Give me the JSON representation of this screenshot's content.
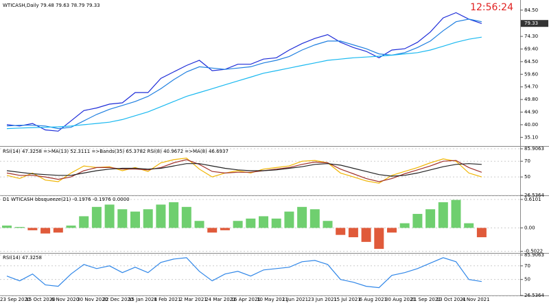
{
  "clock": "12:56:24",
  "chart_data": [
    {
      "type": "line",
      "title": "WTICASH,Daily 79.48 79.63 78.79 79.33",
      "last_price": 79.33,
      "categories": [
        "23 Sep 2020",
        null,
        "15 Oct 2020",
        null,
        "6 Nov 2020",
        null,
        "30 Nov 2020",
        null,
        "22 Dec 2020",
        null,
        "15 Jan 2021",
        null,
        "8 Feb 2021",
        null,
        "2 Mar 2021",
        null,
        "24 Mar 2021",
        null,
        "16 Apr 2021",
        null,
        "10 May 2021",
        null,
        "1 Jun 2021",
        null,
        "23 Jun 2021",
        null,
        "15 Jul 2021",
        null,
        "6 Aug 2021",
        null,
        "30 Aug 2021",
        null,
        "21 Sep 2021",
        null,
        "13 Oct 2021",
        null,
        "4 Nov 2021",
        null
      ],
      "series": [
        {
          "color": "#1c2bd8",
          "values": [
            40.0,
            39.5,
            40.5,
            38.0,
            37.5,
            41.5,
            45.5,
            46.5,
            48.0,
            48.5,
            52.5,
            52.5,
            58.0,
            60.5,
            63.0,
            65.0,
            61.0,
            61.5,
            63.5,
            63.5,
            65.5,
            66.0,
            69.0,
            71.5,
            73.5,
            75.0,
            72.0,
            70.0,
            68.5,
            66.0,
            69.0,
            69.5,
            72.0,
            76.0,
            81.5,
            83.5,
            81.0,
            79.3
          ]
        },
        {
          "color": "#1e7fe0",
          "values": [
            39.5,
            39.8,
            39.8,
            39.5,
            38.5,
            39.0,
            41.5,
            44.0,
            46.0,
            47.5,
            49.0,
            51.0,
            54.0,
            57.5,
            60.5,
            62.5,
            62.0,
            61.5,
            62.0,
            62.5,
            64.0,
            65.0,
            66.5,
            69.0,
            71.0,
            72.5,
            72.5,
            71.0,
            69.5,
            67.5,
            67.0,
            68.0,
            70.0,
            72.5,
            76.5,
            80.0,
            81.0,
            80.0
          ]
        },
        {
          "color": "#18b8f0",
          "values": [
            38.5,
            38.7,
            38.9,
            39.0,
            39.2,
            39.5,
            40.0,
            40.5,
            41.0,
            42.0,
            43.5,
            45.0,
            47.0,
            49.0,
            51.0,
            52.5,
            54.0,
            55.5,
            57.0,
            58.5,
            60.0,
            61.0,
            62.0,
            63.0,
            64.0,
            65.0,
            65.5,
            66.0,
            66.3,
            66.6,
            67.0,
            67.5,
            68.0,
            69.0,
            70.5,
            72.0,
            73.2,
            74.0
          ]
        }
      ],
      "ylim": [
        32.0,
        87.37
      ],
      "yticks": [
        {
          "value": 84.5,
          "label": "84.50"
        },
        {
          "value": 74.3,
          "label": "74.30"
        },
        {
          "value": 69.4,
          "label": "69.40"
        },
        {
          "value": 64.5,
          "label": "64.50"
        },
        {
          "value": 59.6,
          "label": "59.60"
        },
        {
          "value": 54.7,
          "label": "54.70"
        },
        {
          "value": 49.8,
          "label": "49.80"
        },
        {
          "value": 44.9,
          "label": "44.90"
        },
        {
          "value": 40,
          "label": "40.00"
        },
        {
          "value": 35.1,
          "label": "35.10"
        }
      ]
    },
    {
      "type": "line",
      "title": "RSI(14) 47.3258 =>MA(13) 52.3111 =>Bands(35) 65.3782 RSI(8) 40.9672 =>MA(8) 46.6937",
      "series": [
        {
          "color": "#f0b400",
          "values": [
            52,
            48,
            55,
            46,
            44,
            55,
            64,
            62,
            63,
            58,
            62,
            57,
            68,
            72,
            74,
            60,
            50,
            55,
            58,
            55,
            60,
            62,
            64,
            70,
            71,
            68,
            55,
            50,
            45,
            42,
            52,
            57,
            62,
            68,
            73,
            70,
            55,
            50
          ]
        },
        {
          "color": "#a0302a",
          "values": [
            55,
            52,
            52,
            50,
            47,
            50,
            58,
            62,
            62,
            60,
            60,
            59,
            62,
            68,
            72,
            66,
            57,
            55,
            56,
            56,
            58,
            60,
            62,
            66,
            69,
            68,
            60,
            54,
            48,
            44,
            48,
            54,
            59,
            64,
            70,
            71,
            62,
            56
          ]
        },
        {
          "color": "#222222",
          "values": [
            58,
            56,
            54,
            53,
            52,
            52,
            55,
            58,
            60,
            61,
            61,
            60,
            61,
            64,
            67,
            67,
            64,
            61,
            59,
            58,
            58,
            59,
            61,
            63,
            66,
            67,
            65,
            61,
            57,
            53,
            51,
            52,
            55,
            59,
            63,
            66,
            67,
            66
          ]
        }
      ],
      "ylim": [
        26.5364,
        85.9063
      ],
      "yticks": [
        85.9063,
        70,
        50,
        26.5364
      ]
    },
    {
      "type": "bar",
      "title": "D1 WTICASH bbsqueeze(21) -0.1976 -0.1976 0.0000",
      "colors": {
        "positive": "#6fcf6f",
        "negative": "#e05a3a"
      },
      "values": [
        0.05,
        0.02,
        -0.05,
        -0.12,
        -0.1,
        0.05,
        0.25,
        0.45,
        0.5,
        0.4,
        0.35,
        0.4,
        0.5,
        0.55,
        0.45,
        0.15,
        -0.1,
        -0.05,
        0.15,
        0.2,
        0.25,
        0.2,
        0.35,
        0.45,
        0.4,
        0.15,
        -0.15,
        -0.2,
        -0.3,
        -0.45,
        -0.1,
        0.1,
        0.3,
        0.4,
        0.55,
        0.6,
        0.1,
        -0.2
      ],
      "ylim": [
        -0.5225,
        0.668
      ],
      "yticks": [
        0.6101,
        {
          "value": 0,
          "label": "0.00"
        },
        -0.5022
      ]
    },
    {
      "type": "line",
      "title": "RSI(14) 47.3258",
      "series": [
        {
          "color": "#2f86e8",
          "values": [
            55,
            48,
            58,
            42,
            40,
            58,
            72,
            66,
            70,
            60,
            68,
            60,
            75,
            80,
            82,
            62,
            48,
            58,
            62,
            55,
            64,
            66,
            68,
            76,
            78,
            72,
            50,
            46,
            40,
            38,
            56,
            60,
            66,
            74,
            82,
            76,
            50,
            47
          ]
        }
      ],
      "ylim": [
        26.5364,
        85.9063
      ],
      "yticks": [
        85.9063,
        70,
        50,
        26.5364
      ]
    }
  ]
}
